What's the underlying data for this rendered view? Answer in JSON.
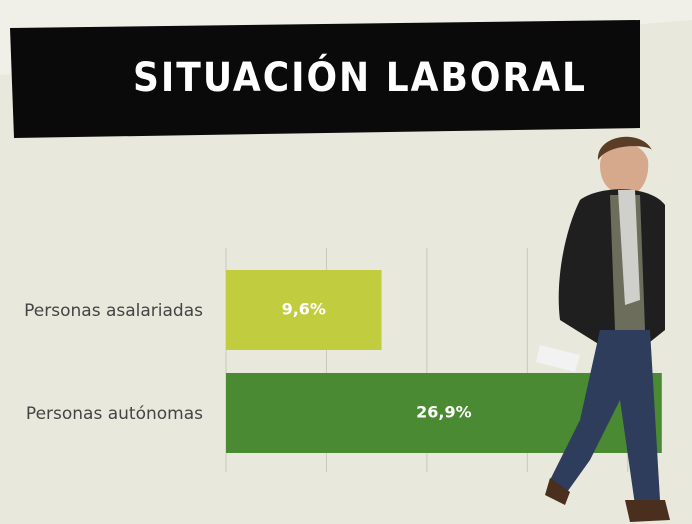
{
  "chart_data": {
    "type": "bar",
    "orientation": "horizontal",
    "title": "SITUACIÓN LABORAL",
    "categories": [
      "Personas asalariadas",
      "Personas autónomas"
    ],
    "values": [
      9.6,
      26.9
    ],
    "value_labels": [
      "9,6%",
      "26,9%"
    ],
    "colors": [
      "#c2cc3f",
      "#4a8a33"
    ],
    "xlim": [
      0,
      28.7
    ],
    "xticks": [
      0,
      6.2,
      12.4,
      18.6,
      24.8
    ],
    "grid": true
  }
}
